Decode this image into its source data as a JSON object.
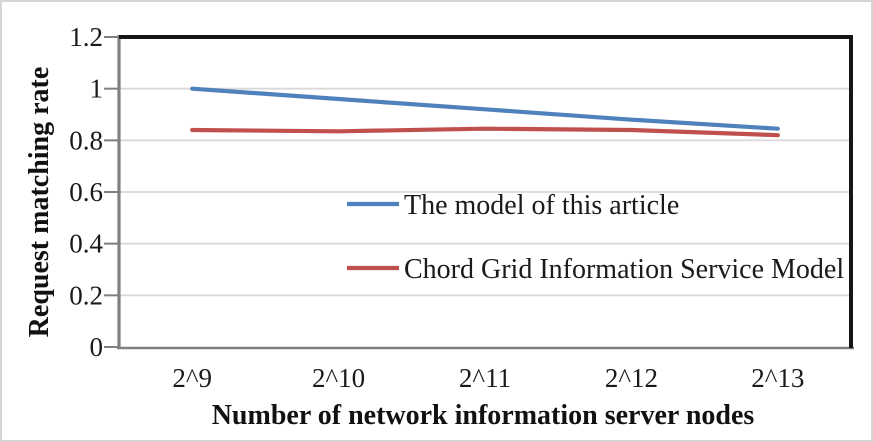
{
  "chart_data": {
    "type": "line",
    "title": "",
    "xlabel": "Number of network information server nodes",
    "ylabel": "Request matching rate",
    "categories": [
      "2^9",
      "2^10",
      "2^11",
      "2^12",
      "2^13"
    ],
    "series": [
      {
        "name": "The model of this article",
        "color": "#4f81bd",
        "values": [
          1.0,
          0.96,
          0.92,
          0.88,
          0.845
        ]
      },
      {
        "name": "Chord Grid Information Service Model",
        "color": "#c0504d",
        "values": [
          0.84,
          0.835,
          0.845,
          0.84,
          0.82
        ]
      }
    ],
    "ylim": [
      0,
      1.2
    ],
    "ytick_step": 0.2,
    "ytick_labels": [
      "0",
      "0.2",
      "0.4",
      "0.6",
      "0.8",
      "1",
      "1.2"
    ],
    "grid": true,
    "legend_position": "inside-center",
    "colors": {
      "gridline": "#d9d9d9",
      "axis": "#7f7f7f",
      "plot_border": "#161616",
      "text": "#1a1a1a",
      "figure_border": "#d6d6d6"
    }
  }
}
